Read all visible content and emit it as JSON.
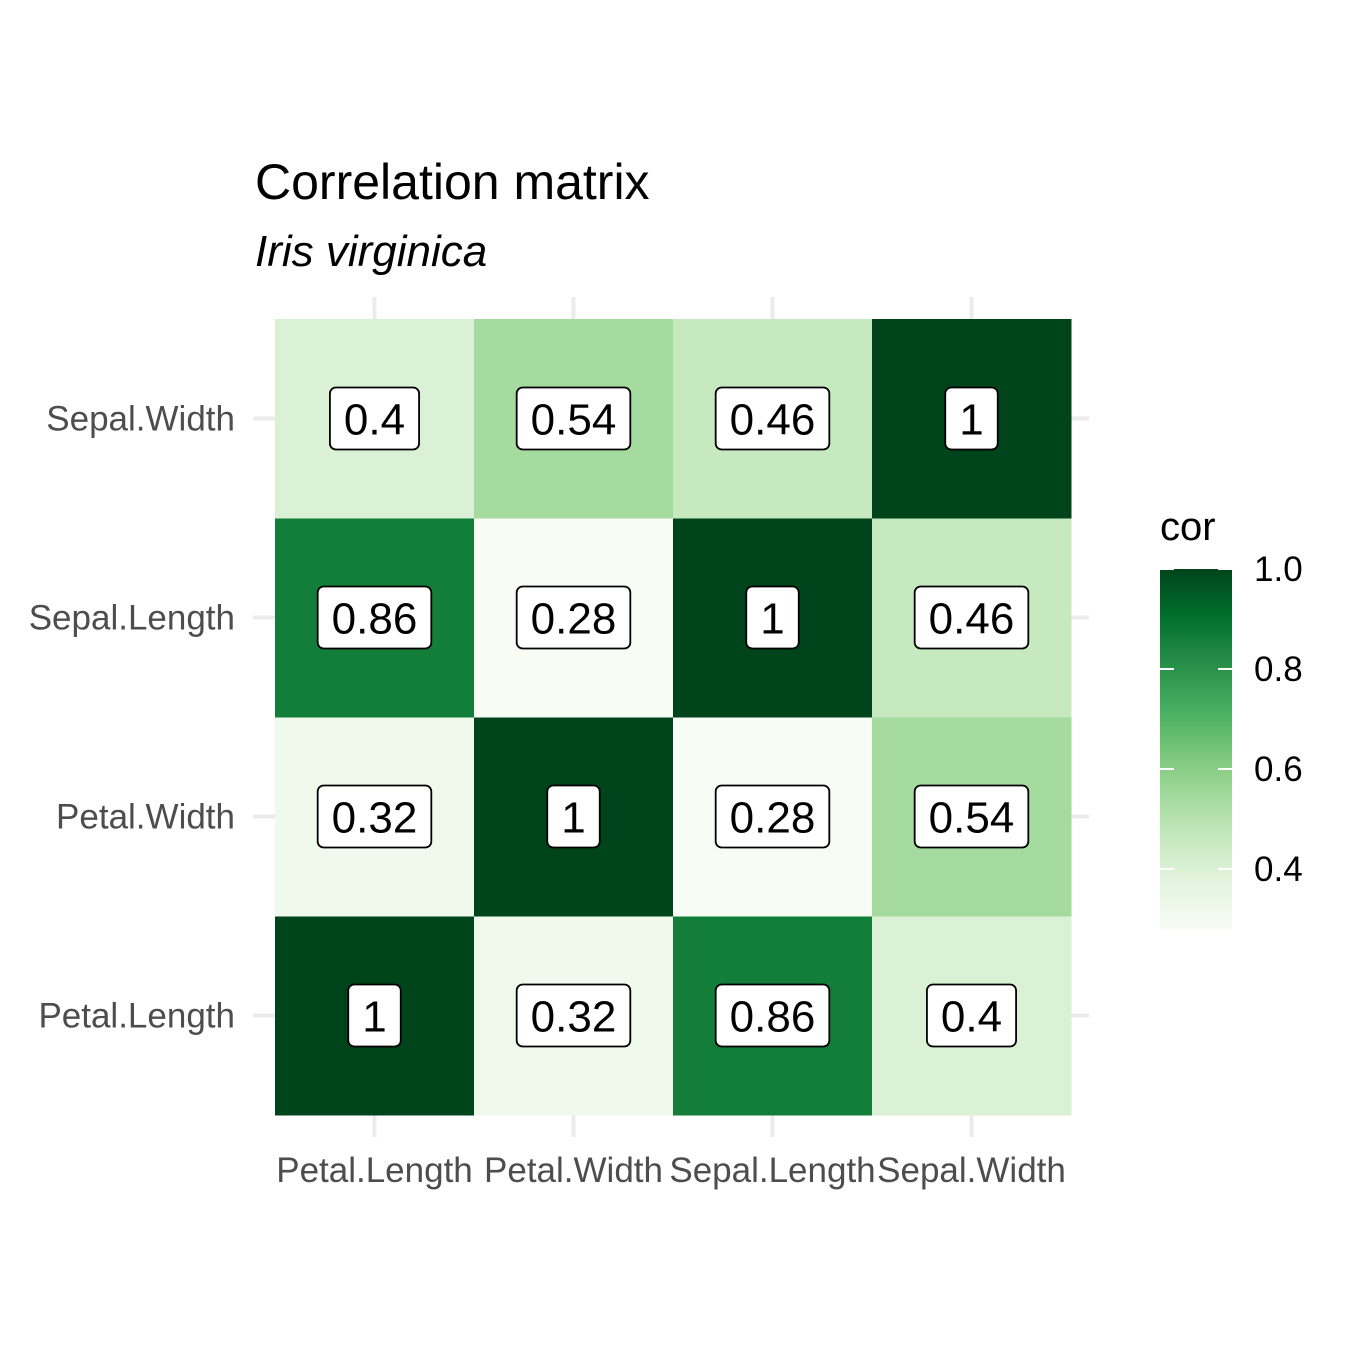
{
  "chart_data": {
    "type": "heatmap",
    "title": "Correlation matrix",
    "subtitle": "Iris virginica",
    "x_categories": [
      "Petal.Length",
      "Petal.Width",
      "Sepal.Length",
      "Sepal.Width"
    ],
    "y_categories": [
      "Petal.Length",
      "Petal.Width",
      "Sepal.Length",
      "Sepal.Width"
    ],
    "values": [
      [
        1.0,
        0.32,
        0.86,
        0.4
      ],
      [
        0.32,
        1.0,
        0.28,
        0.54
      ],
      [
        0.86,
        0.28,
        1.0,
        0.46
      ],
      [
        0.4,
        0.54,
        0.46,
        1.0
      ]
    ],
    "labels": [
      [
        "1",
        "0.32",
        "0.86",
        "0.4"
      ],
      [
        "0.32",
        "1",
        "0.28",
        "0.54"
      ],
      [
        "0.86",
        "0.28",
        "1",
        "0.46"
      ],
      [
        "0.4",
        "0.54",
        "0.46",
        "1"
      ]
    ],
    "legend": {
      "title": "cor",
      "range": [
        0.28,
        1.0
      ],
      "ticks": [
        0.4,
        0.6,
        0.8,
        1.0
      ],
      "tick_labels": [
        "0.4",
        "0.6",
        "0.8",
        "1.0"
      ],
      "palette": [
        "#f7fcf5",
        "#e5f5e0",
        "#c7e9c0",
        "#a1d99b",
        "#74c476",
        "#41ab5d",
        "#238b45",
        "#006d2c",
        "#00441b"
      ],
      "placement": "right"
    },
    "grid": true
  }
}
